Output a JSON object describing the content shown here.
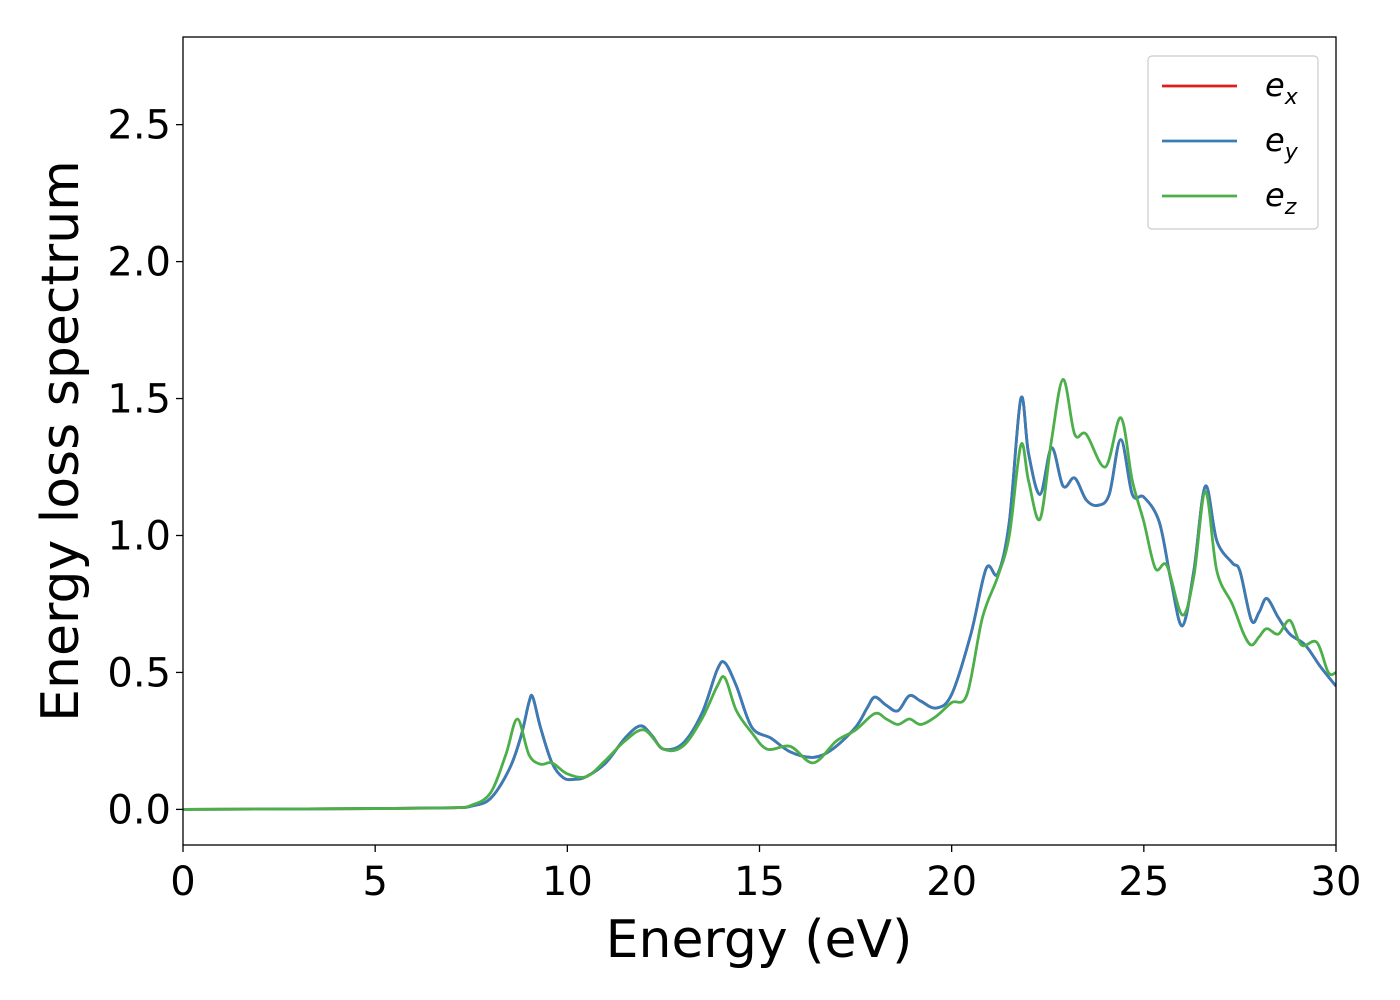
{
  "chart_data": {
    "type": "line",
    "title": "",
    "xlabel": "Energy (eV)",
    "ylabel": "Energy loss spectrum",
    "xlim": [
      0,
      30
    ],
    "ylim": [
      -0.13,
      2.82
    ],
    "xticks": [
      0,
      5,
      10,
      15,
      20,
      25,
      30
    ],
    "xtick_labels": [
      "0",
      "5",
      "10",
      "15",
      "20",
      "25",
      "30"
    ],
    "yticks": [
      0.0,
      0.5,
      1.0,
      1.5,
      2.0,
      2.5
    ],
    "ytick_labels": [
      "0.0",
      "0.5",
      "1.0",
      "1.5",
      "2.0",
      "2.5"
    ],
    "grid": false,
    "legend_position": "top-right",
    "series": [
      {
        "name": "e_x",
        "base": "e",
        "sub": "x",
        "color": "#e41a1c",
        "points": [
          [
            0,
            0
          ],
          [
            5,
            0.003
          ],
          [
            7,
            0.006
          ],
          [
            7.5,
            0.012
          ],
          [
            8,
            0.04
          ],
          [
            8.5,
            0.15
          ],
          [
            8.8,
            0.27
          ],
          [
            9.0,
            0.39
          ],
          [
            9.1,
            0.41
          ],
          [
            9.3,
            0.3
          ],
          [
            9.6,
            0.17
          ],
          [
            9.9,
            0.115
          ],
          [
            10.2,
            0.11
          ],
          [
            10.5,
            0.12
          ],
          [
            11.0,
            0.17
          ],
          [
            11.5,
            0.26
          ],
          [
            11.9,
            0.305
          ],
          [
            12.2,
            0.27
          ],
          [
            12.5,
            0.22
          ],
          [
            13.0,
            0.24
          ],
          [
            13.5,
            0.35
          ],
          [
            13.9,
            0.51
          ],
          [
            14.1,
            0.535
          ],
          [
            14.4,
            0.45
          ],
          [
            14.8,
            0.3
          ],
          [
            15.3,
            0.26
          ],
          [
            15.8,
            0.21
          ],
          [
            16.4,
            0.19
          ],
          [
            16.9,
            0.22
          ],
          [
            17.5,
            0.3
          ],
          [
            17.8,
            0.37
          ],
          [
            18.0,
            0.41
          ],
          [
            18.3,
            0.38
          ],
          [
            18.6,
            0.36
          ],
          [
            18.9,
            0.415
          ],
          [
            19.2,
            0.395
          ],
          [
            19.6,
            0.37
          ],
          [
            20.0,
            0.42
          ],
          [
            20.5,
            0.64
          ],
          [
            20.9,
            0.88
          ],
          [
            21.2,
            0.86
          ],
          [
            21.5,
            1.05
          ],
          [
            21.8,
            1.5
          ],
          [
            22.0,
            1.3
          ],
          [
            22.3,
            1.15
          ],
          [
            22.6,
            1.32
          ],
          [
            22.9,
            1.18
          ],
          [
            23.2,
            1.21
          ],
          [
            23.5,
            1.13
          ],
          [
            23.8,
            1.11
          ],
          [
            24.1,
            1.15
          ],
          [
            24.4,
            1.35
          ],
          [
            24.7,
            1.15
          ],
          [
            25.0,
            1.14
          ],
          [
            25.4,
            1.05
          ],
          [
            25.7,
            0.84
          ],
          [
            26.0,
            0.67
          ],
          [
            26.3,
            0.87
          ],
          [
            26.6,
            1.18
          ],
          [
            26.9,
            0.98
          ],
          [
            27.3,
            0.9
          ],
          [
            27.5,
            0.87
          ],
          [
            27.8,
            0.69
          ],
          [
            28.0,
            0.72
          ],
          [
            28.2,
            0.77
          ],
          [
            28.5,
            0.7
          ],
          [
            28.8,
            0.64
          ],
          [
            29.2,
            0.6
          ],
          [
            29.6,
            0.52
          ],
          [
            30.0,
            0.45
          ]
        ]
      },
      {
        "name": "e_y",
        "base": "e",
        "sub": "y",
        "color": "#377eb8",
        "points": [
          [
            0,
            0
          ],
          [
            5,
            0.003
          ],
          [
            7,
            0.006
          ],
          [
            7.5,
            0.012
          ],
          [
            8,
            0.04
          ],
          [
            8.5,
            0.15
          ],
          [
            8.8,
            0.27
          ],
          [
            9.0,
            0.39
          ],
          [
            9.1,
            0.41
          ],
          [
            9.3,
            0.3
          ],
          [
            9.6,
            0.17
          ],
          [
            9.9,
            0.115
          ],
          [
            10.2,
            0.11
          ],
          [
            10.5,
            0.12
          ],
          [
            11.0,
            0.17
          ],
          [
            11.5,
            0.26
          ],
          [
            11.9,
            0.305
          ],
          [
            12.2,
            0.27
          ],
          [
            12.5,
            0.22
          ],
          [
            13.0,
            0.24
          ],
          [
            13.5,
            0.35
          ],
          [
            13.9,
            0.51
          ],
          [
            14.1,
            0.535
          ],
          [
            14.4,
            0.45
          ],
          [
            14.8,
            0.3
          ],
          [
            15.3,
            0.26
          ],
          [
            15.8,
            0.21
          ],
          [
            16.4,
            0.19
          ],
          [
            16.9,
            0.22
          ],
          [
            17.5,
            0.3
          ],
          [
            17.8,
            0.37
          ],
          [
            18.0,
            0.41
          ],
          [
            18.3,
            0.38
          ],
          [
            18.6,
            0.36
          ],
          [
            18.9,
            0.415
          ],
          [
            19.2,
            0.395
          ],
          [
            19.6,
            0.37
          ],
          [
            20.0,
            0.42
          ],
          [
            20.5,
            0.64
          ],
          [
            20.9,
            0.88
          ],
          [
            21.2,
            0.86
          ],
          [
            21.5,
            1.05
          ],
          [
            21.8,
            1.5
          ],
          [
            22.0,
            1.3
          ],
          [
            22.3,
            1.15
          ],
          [
            22.6,
            1.32
          ],
          [
            22.9,
            1.18
          ],
          [
            23.2,
            1.21
          ],
          [
            23.5,
            1.13
          ],
          [
            23.8,
            1.11
          ],
          [
            24.1,
            1.15
          ],
          [
            24.4,
            1.35
          ],
          [
            24.7,
            1.15
          ],
          [
            25.0,
            1.14
          ],
          [
            25.4,
            1.05
          ],
          [
            25.7,
            0.84
          ],
          [
            26.0,
            0.67
          ],
          [
            26.3,
            0.87
          ],
          [
            26.6,
            1.18
          ],
          [
            26.9,
            0.98
          ],
          [
            27.3,
            0.9
          ],
          [
            27.5,
            0.87
          ],
          [
            27.8,
            0.69
          ],
          [
            28.0,
            0.72
          ],
          [
            28.2,
            0.77
          ],
          [
            28.5,
            0.7
          ],
          [
            28.8,
            0.64
          ],
          [
            29.2,
            0.6
          ],
          [
            29.6,
            0.52
          ],
          [
            30.0,
            0.45
          ]
        ]
      },
      {
        "name": "e_z",
        "base": "e",
        "sub": "z",
        "color": "#4daf4a",
        "points": [
          [
            0,
            0
          ],
          [
            5,
            0.003
          ],
          [
            7,
            0.006
          ],
          [
            7.5,
            0.015
          ],
          [
            8,
            0.06
          ],
          [
            8.4,
            0.2
          ],
          [
            8.7,
            0.33
          ],
          [
            9.0,
            0.2
          ],
          [
            9.3,
            0.165
          ],
          [
            9.6,
            0.17
          ],
          [
            10.0,
            0.13
          ],
          [
            10.5,
            0.12
          ],
          [
            11.0,
            0.18
          ],
          [
            11.5,
            0.25
          ],
          [
            12.0,
            0.29
          ],
          [
            12.5,
            0.22
          ],
          [
            13.0,
            0.23
          ],
          [
            13.5,
            0.33
          ],
          [
            13.9,
            0.45
          ],
          [
            14.1,
            0.48
          ],
          [
            14.4,
            0.36
          ],
          [
            14.8,
            0.28
          ],
          [
            15.2,
            0.22
          ],
          [
            15.8,
            0.23
          ],
          [
            16.4,
            0.17
          ],
          [
            17.0,
            0.25
          ],
          [
            17.5,
            0.29
          ],
          [
            18.0,
            0.35
          ],
          [
            18.3,
            0.33
          ],
          [
            18.6,
            0.31
          ],
          [
            18.9,
            0.33
          ],
          [
            19.2,
            0.31
          ],
          [
            19.6,
            0.34
          ],
          [
            20.0,
            0.39
          ],
          [
            20.4,
            0.42
          ],
          [
            20.8,
            0.7
          ],
          [
            21.2,
            0.85
          ],
          [
            21.5,
            1.0
          ],
          [
            21.8,
            1.33
          ],
          [
            22.0,
            1.2
          ],
          [
            22.3,
            1.06
          ],
          [
            22.6,
            1.35
          ],
          [
            22.9,
            1.57
          ],
          [
            23.2,
            1.37
          ],
          [
            23.5,
            1.37
          ],
          [
            24.0,
            1.25
          ],
          [
            24.4,
            1.43
          ],
          [
            24.7,
            1.2
          ],
          [
            25.0,
            1.05
          ],
          [
            25.3,
            0.88
          ],
          [
            25.6,
            0.89
          ],
          [
            26.0,
            0.71
          ],
          [
            26.3,
            0.85
          ],
          [
            26.6,
            1.16
          ],
          [
            26.9,
            0.87
          ],
          [
            27.3,
            0.75
          ],
          [
            27.6,
            0.64
          ],
          [
            27.8,
            0.6
          ],
          [
            28.0,
            0.63
          ],
          [
            28.2,
            0.66
          ],
          [
            28.5,
            0.64
          ],
          [
            28.8,
            0.69
          ],
          [
            29.1,
            0.6
          ],
          [
            29.5,
            0.61
          ],
          [
            29.8,
            0.5
          ],
          [
            30.0,
            0.5
          ]
        ]
      }
    ]
  }
}
